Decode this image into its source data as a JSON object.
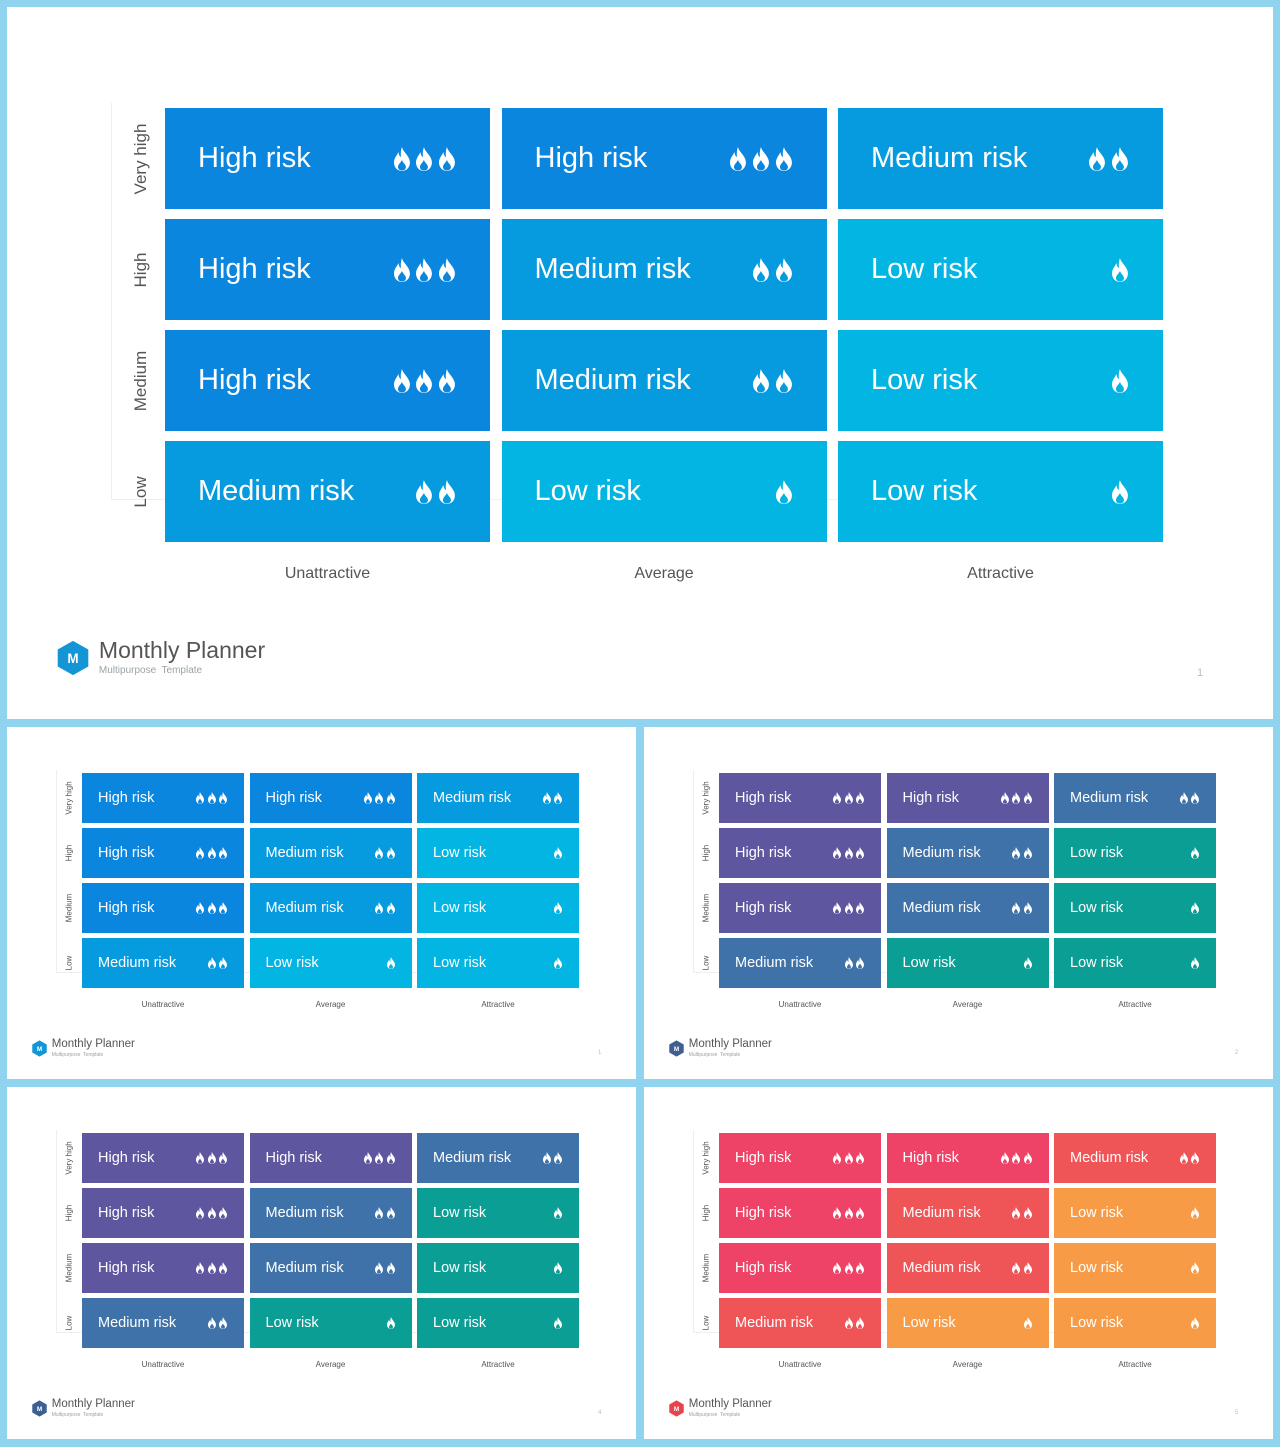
{
  "brand": {
    "title": "Monthly Planner",
    "subtitle": "Multipurpose  Template",
    "logo_letter": "M"
  },
  "row_labels": [
    "Very high",
    "High",
    "Medium",
    "Low"
  ],
  "col_labels": [
    "Unattractive",
    "Average",
    "Attractive"
  ],
  "levels": {
    "high": "High risk",
    "medium": "Medium risk",
    "low": "Low risk"
  },
  "grid": [
    [
      "high",
      "high",
      "medium"
    ],
    [
      "high",
      "medium",
      "low"
    ],
    [
      "high",
      "medium",
      "low"
    ],
    [
      "medium",
      "low",
      "low"
    ]
  ],
  "flame_counts": {
    "high": 3,
    "medium": 2,
    "low": 1
  },
  "icons": {
    "risk_level": "flame-icon",
    "logo": "hexagon-logo-icon"
  },
  "slides": [
    {
      "page": "1",
      "colors": {
        "high": "#0b86df",
        "medium": "#069adf",
        "low": "#03b5e2"
      },
      "logo_color": "#1495d6"
    },
    {
      "page": "1",
      "colors": {
        "high": "#0b86df",
        "medium": "#069adf",
        "low": "#03b5e2"
      },
      "logo_color": "#1495d6"
    },
    {
      "page": "2",
      "colors": {
        "high": "#5e57a0",
        "medium": "#3f72a8",
        "low": "#0b9e94"
      },
      "logo_color": "#3f5f93"
    },
    {
      "page": "4",
      "colors": {
        "high": "#5e57a0",
        "medium": "#3f72a8",
        "low": "#0b9e94"
      },
      "logo_color": "#3f5f93"
    },
    {
      "page": "5",
      "colors": {
        "high": "#ee4266",
        "medium": "#ef5457",
        "low": "#f79b46"
      },
      "logo_color": "#e8434a"
    }
  ]
}
